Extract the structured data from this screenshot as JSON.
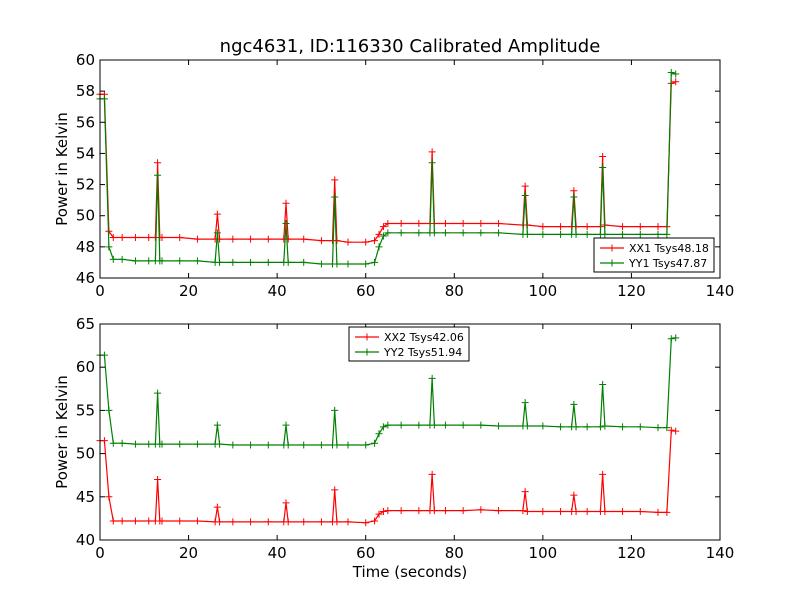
{
  "chart_data": [
    {
      "type": "line",
      "title": "ngc4631, ID:116330 Calibrated Amplitude",
      "xlabel": "",
      "ylabel": "Power in Kelvin",
      "xlim": [
        0,
        140
      ],
      "ylim": [
        46,
        60
      ],
      "xticks": [
        "0",
        "20",
        "40",
        "60",
        "80",
        "100",
        "120",
        "140"
      ],
      "yticks": [
        "46",
        "48",
        "50",
        "52",
        "54",
        "56",
        "58",
        "60"
      ],
      "legend": "lower-right",
      "series": [
        {
          "name": "XX1 Tsys48.18",
          "color": "#ff0000",
          "x": [
            0,
            1,
            2,
            3,
            5,
            8,
            11,
            12.5,
            13,
            13.5,
            14,
            18,
            22,
            26,
            26.5,
            27,
            30,
            34,
            38,
            41.5,
            42,
            42.5,
            46,
            50,
            52.5,
            53,
            53.5,
            56,
            60,
            62,
            63,
            64,
            65,
            68,
            72,
            74.5,
            75,
            75.5,
            78,
            82,
            86,
            90,
            95.5,
            96,
            96.5,
            100,
            104,
            106.5,
            107,
            107.5,
            110,
            113,
            113.5,
            114,
            118,
            122,
            126,
            128,
            129,
            130
          ],
          "y": [
            57.8,
            57.8,
            49,
            48.6,
            48.6,
            48.6,
            48.6,
            48.6,
            53.4,
            48.6,
            48.6,
            48.6,
            48.5,
            48.5,
            50.1,
            48.5,
            48.5,
            48.5,
            48.5,
            48.5,
            50.8,
            48.5,
            48.5,
            48.4,
            48.4,
            52.3,
            48.4,
            48.3,
            48.3,
            48.4,
            48.8,
            49.3,
            49.5,
            49.5,
            49.5,
            49.5,
            54.1,
            49.5,
            49.5,
            49.5,
            49.5,
            49.5,
            49.4,
            51.9,
            49.4,
            49.3,
            49.3,
            49.3,
            51.6,
            49.3,
            49.3,
            49.3,
            53.8,
            49.4,
            49.3,
            49.3,
            49.3,
            49.3,
            58.5,
            58.6
          ]
        },
        {
          "name": "YY1 Tsys47.87",
          "color": "#008000",
          "x": [
            0,
            1,
            2,
            3,
            5,
            8,
            11,
            12.5,
            13,
            13.5,
            14,
            18,
            22,
            26,
            26.5,
            27,
            30,
            34,
            38,
            41.5,
            42,
            42.5,
            46,
            50,
            52.5,
            53,
            53.5,
            56,
            60,
            62,
            63,
            64,
            65,
            68,
            72,
            74.5,
            75,
            75.5,
            78,
            82,
            86,
            90,
            95.5,
            96,
            96.5,
            100,
            104,
            106.5,
            107,
            107.5,
            110,
            113,
            113.5,
            114,
            118,
            122,
            126,
            128,
            129,
            130
          ],
          "y": [
            57.5,
            57.5,
            48,
            47.2,
            47.2,
            47.1,
            47.1,
            47.1,
            52.6,
            47.1,
            47.1,
            47.1,
            47.1,
            47,
            48.9,
            47,
            47,
            47,
            47,
            47,
            49.5,
            47,
            47,
            46.9,
            46.9,
            51.2,
            46.9,
            46.9,
            46.9,
            47,
            48,
            48.7,
            48.9,
            48.9,
            48.9,
            48.9,
            53.4,
            48.9,
            48.9,
            48.9,
            48.9,
            48.9,
            48.8,
            51.3,
            48.8,
            48.8,
            48.8,
            48.8,
            51.2,
            48.8,
            48.8,
            48.8,
            53.1,
            48.8,
            48.8,
            48.8,
            48.8,
            48.8,
            59.2,
            59.1
          ]
        }
      ]
    },
    {
      "type": "line",
      "title": "",
      "xlabel": "Time (seconds)",
      "ylabel": "Power in Kelvin",
      "xlim": [
        0,
        140
      ],
      "ylim": [
        40,
        65
      ],
      "xticks": [
        "0",
        "20",
        "40",
        "60",
        "80",
        "100",
        "120",
        "140"
      ],
      "yticks": [
        "40",
        "45",
        "50",
        "55",
        "60",
        "65"
      ],
      "legend": "top-center",
      "series": [
        {
          "name": "XX2 Tsys42.06",
          "color": "#ff0000",
          "x": [
            0,
            1,
            2,
            3,
            5,
            8,
            11,
            12.5,
            13,
            13.5,
            14,
            18,
            22,
            26,
            26.5,
            27,
            30,
            34,
            38,
            41.5,
            42,
            42.5,
            46,
            50,
            52.5,
            53,
            53.5,
            56,
            60,
            62,
            63,
            64,
            65,
            68,
            72,
            74.5,
            75,
            75.5,
            78,
            82,
            86,
            90,
            95.5,
            96,
            96.5,
            100,
            104,
            106.5,
            107,
            107.5,
            110,
            113,
            113.5,
            114,
            118,
            122,
            126,
            128,
            129,
            130
          ],
          "y": [
            51.5,
            51.5,
            45,
            42.2,
            42.2,
            42.2,
            42.2,
            42.2,
            47,
            42.2,
            42.2,
            42.2,
            42.2,
            42.1,
            43.8,
            42.1,
            42.1,
            42.1,
            42.1,
            42.1,
            44.3,
            42.1,
            42.1,
            42.1,
            42.1,
            45.8,
            42.1,
            42.1,
            42,
            42.2,
            43,
            43.3,
            43.4,
            43.4,
            43.4,
            43.4,
            47.6,
            43.4,
            43.4,
            43.4,
            43.5,
            43.4,
            43.4,
            45.6,
            43.3,
            43.3,
            43.3,
            43.3,
            45.2,
            43.3,
            43.3,
            43.3,
            47.6,
            43.3,
            43.3,
            43.3,
            43.2,
            43.2,
            52.7,
            52.6
          ]
        },
        {
          "name": "YY2 Tsys51.94",
          "color": "#008000",
          "x": [
            0,
            1,
            2,
            3,
            5,
            8,
            11,
            12.5,
            13,
            13.5,
            14,
            18,
            22,
            26,
            26.5,
            27,
            30,
            34,
            38,
            41.5,
            42,
            42.5,
            46,
            50,
            52.5,
            53,
            53.5,
            56,
            60,
            62,
            63,
            64,
            65,
            68,
            72,
            74.5,
            75,
            75.5,
            78,
            82,
            86,
            90,
            95.5,
            96,
            96.5,
            100,
            104,
            106.5,
            107,
            107.5,
            110,
            113,
            113.5,
            114,
            118,
            122,
            126,
            128,
            129,
            130
          ],
          "y": [
            61.4,
            61.4,
            55,
            51.2,
            51.2,
            51.1,
            51.1,
            51.1,
            57,
            51.1,
            51.1,
            51.1,
            51.1,
            51.1,
            53.3,
            51.1,
            51,
            51,
            51,
            51,
            53.3,
            51,
            51,
            51,
            51,
            55,
            51,
            51,
            51,
            51.2,
            52.3,
            53.1,
            53.3,
            53.3,
            53.3,
            53.3,
            58.7,
            53.3,
            53.3,
            53.3,
            53.3,
            53.2,
            53.2,
            55.9,
            53.2,
            53.2,
            53.1,
            53.1,
            55.7,
            53.1,
            53.1,
            53.1,
            58,
            53.2,
            53.1,
            53.1,
            53,
            53,
            63.3,
            63.4
          ]
        }
      ]
    }
  ]
}
